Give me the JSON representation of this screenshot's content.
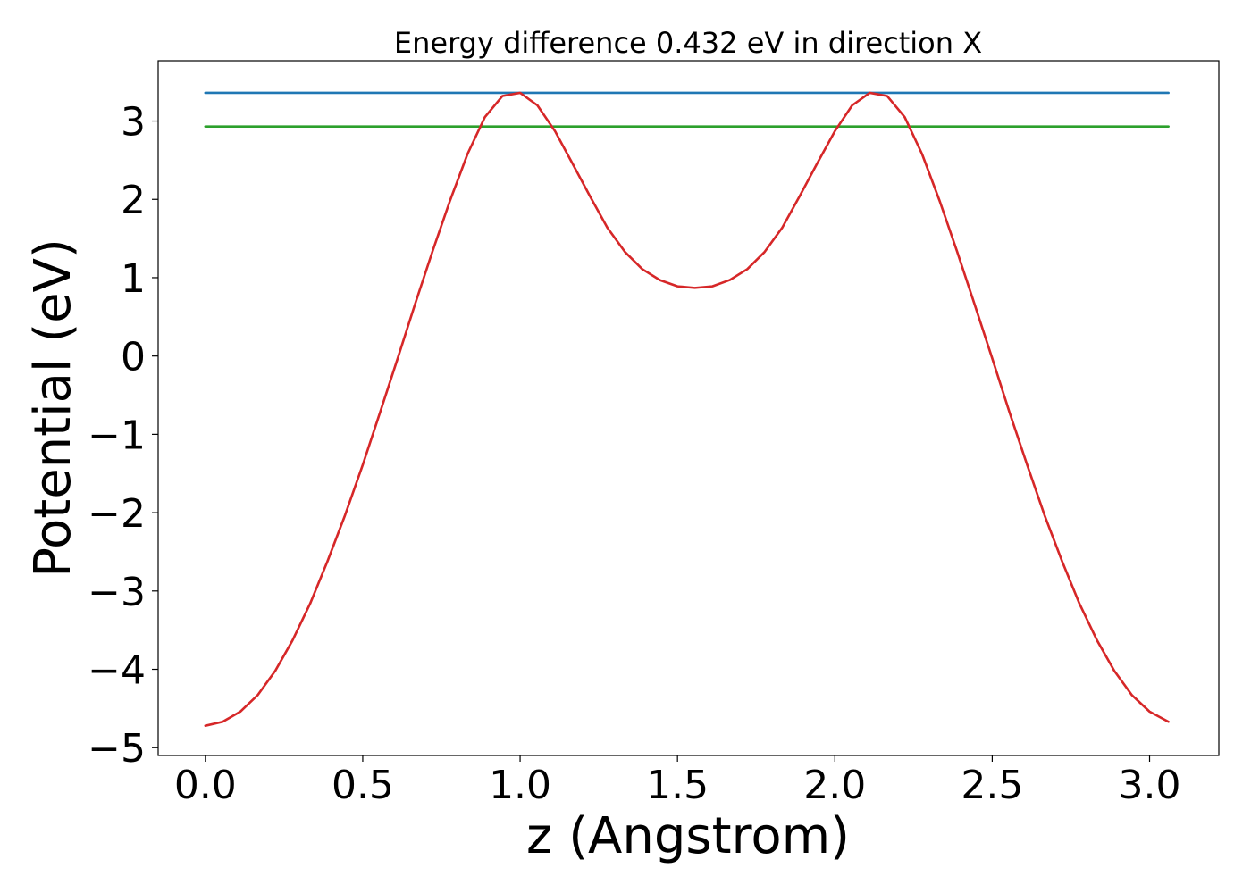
{
  "chart_data": {
    "type": "line",
    "title": "Energy difference 0.432 eV in direction X",
    "xlabel": "z (Angstrom)",
    "ylabel": "Potential (eV)",
    "xlim": [
      -0.15,
      3.22
    ],
    "ylim": [
      -5.1,
      3.77
    ],
    "xticks": [
      0.0,
      0.5,
      1.0,
      1.5,
      2.0,
      2.5,
      3.0
    ],
    "xtick_labels": [
      "0.0",
      "0.5",
      "1.0",
      "1.5",
      "2.0",
      "2.5",
      "3.0"
    ],
    "yticks": [
      -5,
      -4,
      -3,
      -2,
      -1,
      0,
      1,
      2,
      3
    ],
    "ytick_labels": [
      "−5",
      "−4",
      "−3",
      "−2",
      "−1",
      "0",
      "1",
      "2",
      "3"
    ],
    "grid": false,
    "series": [
      {
        "color": "#1f77b4",
        "x": [
          0.0,
          3.06
        ],
        "y": [
          3.36,
          3.36
        ]
      },
      {
        "color": "#2ca02c",
        "x": [
          0.0,
          3.06
        ],
        "y": [
          2.93,
          2.93
        ]
      },
      {
        "color": "#d62728",
        "x": [
          0.0,
          0.055,
          0.111,
          0.166,
          0.222,
          0.277,
          0.333,
          0.388,
          0.444,
          0.5,
          0.555,
          0.611,
          0.666,
          0.722,
          0.777,
          0.833,
          0.888,
          0.944,
          1.0,
          1.055,
          1.111,
          1.166,
          1.222,
          1.277,
          1.333,
          1.388,
          1.444,
          1.5,
          1.555,
          1.611,
          1.666,
          1.722,
          1.777,
          1.833,
          1.888,
          1.944,
          2.0,
          2.055,
          2.111,
          2.166,
          2.222,
          2.277,
          2.333,
          2.388,
          2.444,
          2.5,
          2.555,
          2.611,
          2.666,
          2.722,
          2.777,
          2.833,
          2.888,
          2.944,
          3.0,
          3.06
        ],
        "y": [
          -4.72,
          -4.67,
          -4.54,
          -4.33,
          -4.02,
          -3.63,
          -3.16,
          -2.62,
          -2.03,
          -1.39,
          -0.72,
          -0.03,
          0.66,
          1.34,
          1.98,
          2.58,
          3.05,
          3.32,
          3.36,
          3.2,
          2.87,
          2.46,
          2.04,
          1.64,
          1.33,
          1.11,
          0.97,
          0.89,
          0.87,
          0.89,
          0.97,
          1.11,
          1.33,
          1.64,
          2.04,
          2.46,
          2.87,
          3.2,
          3.36,
          3.32,
          3.05,
          2.58,
          1.98,
          1.34,
          0.66,
          -0.03,
          -0.72,
          -1.39,
          -2.03,
          -2.62,
          -3.16,
          -3.63,
          -4.02,
          -4.33,
          -4.54,
          -4.67
        ]
      }
    ]
  }
}
